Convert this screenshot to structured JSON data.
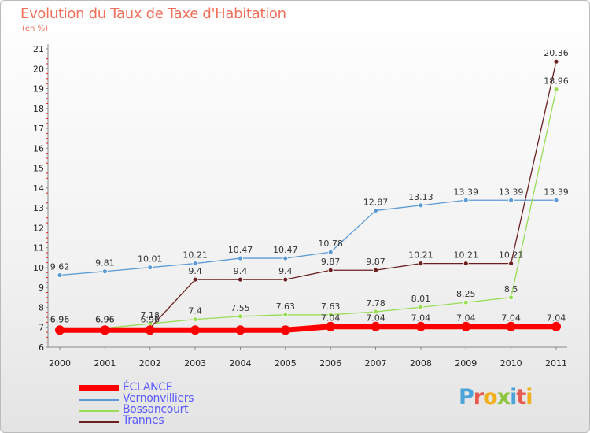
{
  "title": "Evolution du Taux de Taxe d'Habitation",
  "subtitle": "(en %)",
  "brand": {
    "letters": [
      "P",
      "r",
      "o",
      "x",
      "i",
      "t",
      "i"
    ],
    "colors": [
      "#4aa3d9",
      "#e85a4f",
      "#f2b01e",
      "#8cc63f",
      "#4aa3d9",
      "#e85a4f",
      "#f2b01e"
    ]
  },
  "chart_data": {
    "type": "line",
    "title": "Evolution du Taux de Taxe d'Habitation",
    "ylabel": "(en %)",
    "xlabel": "",
    "x": [
      "2000",
      "2001",
      "2002",
      "2003",
      "2004",
      "2005",
      "2006",
      "2007",
      "2008",
      "2009",
      "2010",
      "2011"
    ],
    "yticks": [
      "6",
      "7",
      "8",
      "9",
      "10",
      "11",
      "12",
      "13",
      "14",
      "15",
      "16",
      "17",
      "18",
      "19",
      "20",
      "21"
    ],
    "ylim": [
      6,
      21
    ],
    "grid": false,
    "legend_position": "bottom-left",
    "series": [
      {
        "name": "ÉCLANCE",
        "color": "#ff0000",
        "width": 7,
        "marker": 6,
        "values": [
          6.86,
          6.86,
          6.86,
          6.86,
          6.86,
          6.86,
          7.04,
          7.04,
          7.04,
          7.04,
          7.04,
          7.04
        ],
        "labels": [
          "",
          "",
          "",
          "",
          "",
          "",
          "7.04",
          "7.04",
          "7.04",
          "7.04",
          "7.04",
          "7.04"
        ]
      },
      {
        "name": "Vernonvilliers",
        "color": "#5b9bd5",
        "width": 1.3,
        "marker": 3,
        "values": [
          9.62,
          9.81,
          10.01,
          10.21,
          10.47,
          10.47,
          10.78,
          12.87,
          13.13,
          13.39,
          13.39,
          13.39
        ],
        "labels": [
          "9.62",
          "9.81",
          "10.01",
          "10.21",
          "10.47",
          "10.47",
          "10.78",
          "12.87",
          "13.13",
          "13.39",
          "13.39",
          "13.39"
        ]
      },
      {
        "name": "Bossancourt",
        "color": "#99dd55",
        "width": 1.3,
        "marker": 3,
        "values": [
          6.96,
          6.96,
          7.18,
          7.4,
          7.55,
          7.63,
          7.63,
          7.78,
          8.01,
          8.25,
          8.5,
          18.96
        ],
        "labels": [
          "6.96",
          "6.96",
          "7.18",
          "7.4",
          "7.55",
          "7.63",
          "7.63",
          "7.78",
          "8.01",
          "8.25",
          "8.5",
          "18.96"
        ]
      },
      {
        "name": "Trannes",
        "color": "#6b1f1f",
        "width": 1.3,
        "marker": 3,
        "values": [
          6.96,
          6.96,
          6.96,
          9.4,
          9.4,
          9.4,
          9.87,
          9.87,
          10.21,
          10.21,
          10.21,
          20.36
        ],
        "labels": [
          "6.96",
          "6.96",
          "6.96",
          "9.4",
          "9.4",
          "9.4",
          "9.87",
          "9.87",
          "10.21",
          "10.21",
          "10.21",
          "20.36"
        ]
      }
    ]
  }
}
